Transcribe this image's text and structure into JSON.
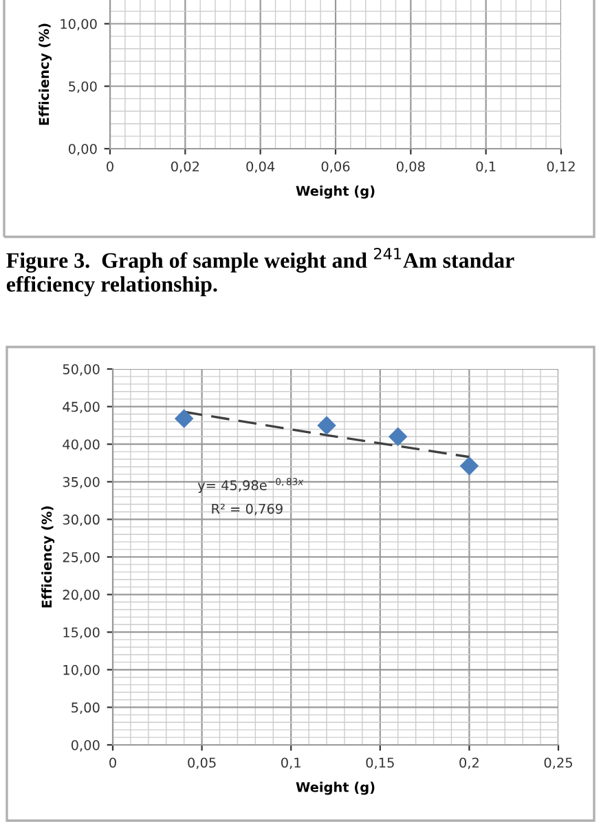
{
  "chart_data": [
    {
      "type": "scatter",
      "xlabel": "Weight (g)",
      "ylabel": "Efficiency (%)",
      "xlim": [
        0,
        0.12
      ],
      "xticks": [
        {
          "value": 0,
          "label": "0"
        },
        {
          "value": 0.02,
          "label": "0,02"
        },
        {
          "value": 0.04,
          "label": "0,04"
        },
        {
          "value": 0.06,
          "label": "0,06"
        },
        {
          "value": 0.08,
          "label": "0,08"
        },
        {
          "value": 0.1,
          "label": "0,1"
        },
        {
          "value": 0.12,
          "label": "0,12"
        }
      ],
      "ylim": [
        0,
        11.9
      ],
      "yticks": [
        {
          "value": 0,
          "label": "0,00"
        },
        {
          "value": 5,
          "label": "5,00"
        },
        {
          "value": 10,
          "label": "10,00"
        }
      ],
      "grid": true,
      "annotations": [
        "Figure 3.  Graph of sample weight and $^{241}$Am standar efficiency relationship."
      ]
    },
    {
      "type": "scatter",
      "xlabel": "Weight (g)",
      "ylabel": "Efficiency (%)",
      "marker": "diamond",
      "grid": true,
      "series": [
        {
          "type": "scatter",
          "color": "#4a7ebb",
          "x": [
            0.04,
            0.12,
            0.16,
            0.2
          ],
          "values": [
            43.4,
            42.5,
            41.0,
            37.1
          ]
        },
        {
          "type": "line",
          "marker": "none",
          "color": "#404040",
          "line_style": "dashed",
          "x": [
            0.04,
            0.12,
            0.2
          ],
          "values": [
            44.3,
            41.2,
            38.3
          ]
        }
      ],
      "xlim": [
        0,
        0.25
      ],
      "xticks": [
        {
          "value": 0,
          "label": "0"
        },
        {
          "value": 0.05,
          "label": "0,05"
        },
        {
          "value": 0.1,
          "label": "0,1"
        },
        {
          "value": 0.15,
          "label": "0,15"
        },
        {
          "value": 0.2,
          "label": "0,2"
        },
        {
          "value": 0.25,
          "label": "0,25"
        }
      ],
      "ylim": [
        0,
        50
      ],
      "yticks": [
        {
          "value": 0,
          "label": "0,00"
        },
        {
          "value": 5,
          "label": "5,00"
        },
        {
          "value": 10,
          "label": "10,00"
        },
        {
          "value": 15,
          "label": "15,00"
        },
        {
          "value": 20,
          "label": "20,00"
        },
        {
          "value": 25,
          "label": "25,00"
        },
        {
          "value": 30,
          "label": "30,00"
        },
        {
          "value": 35,
          "label": "35,00"
        },
        {
          "value": 40,
          "label": "40,00"
        },
        {
          "value": 45,
          "label": "45,00"
        },
        {
          "value": 50,
          "label": "50,00"
        }
      ],
      "annotations": [
        "y= 45,98e$^{−0,83x}$",
        "R² = 0,769"
      ]
    }
  ]
}
